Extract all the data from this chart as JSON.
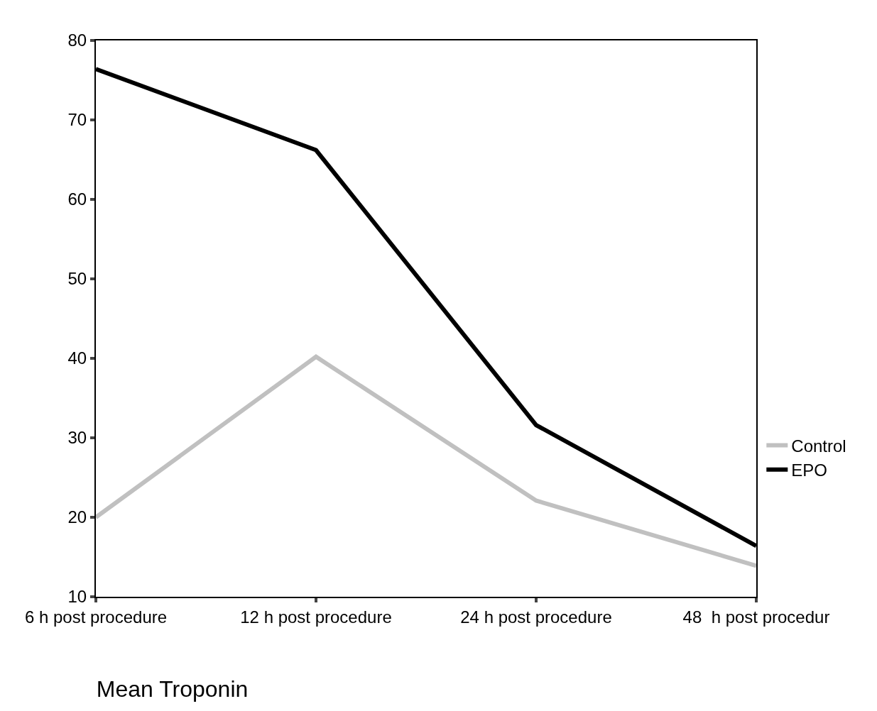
{
  "chart_data": {
    "type": "line",
    "title": "Mean Troponin",
    "categories": [
      "6 h post procedure",
      "12 h post procedure",
      "24 h post procedure",
      "48  h post procedur"
    ],
    "series": [
      {
        "name": "Control",
        "color": "#c0c0c0",
        "values": [
          20,
          40.2,
          22.1,
          13.9
        ]
      },
      {
        "name": "EPO",
        "color": "#000000",
        "values": [
          76.4,
          66.2,
          31.6,
          16.4
        ]
      }
    ],
    "ylim": [
      10,
      80
    ],
    "yticks": [
      10,
      20,
      30,
      40,
      50,
      60,
      70,
      80
    ],
    "grid": false,
    "legend": "right",
    "marker": "none",
    "line_style": "solid"
  }
}
